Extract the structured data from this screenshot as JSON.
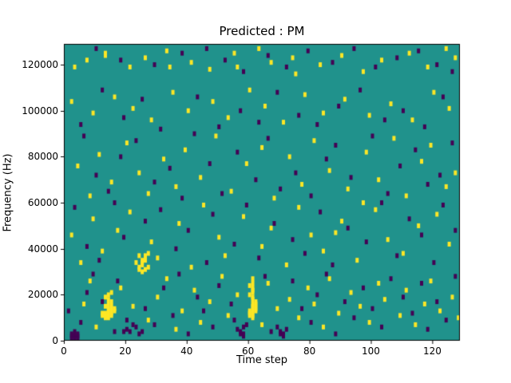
{
  "title": "Predicted : PM",
  "chart_data": {
    "type": "heatmap",
    "title": "Predicted : PM",
    "xlabel": "Time step",
    "ylabel": "Frequency (Hz)",
    "x_range": [
      0,
      129
    ],
    "y_range_hz": [
      0,
      129000
    ],
    "hz_per_bin": 1000,
    "xticks": [
      0,
      20,
      40,
      60,
      80,
      100,
      120
    ],
    "yticks_hz": [
      "0",
      "20000",
      "40000",
      "60000",
      "80000",
      "100000",
      "120000"
    ],
    "grid": false,
    "legend_position": "none",
    "colors": {
      "background_mid": "#20928c",
      "high": "#fde725",
      "low": "#440154"
    },
    "cell_classes": {
      "1": "high-yellow",
      "2": "low-purple"
    },
    "cells": [
      [
        2,
        1,
        2
      ],
      [
        2,
        2,
        2
      ],
      [
        3,
        1,
        2
      ],
      [
        3,
        2,
        2
      ],
      [
        3,
        3,
        2
      ],
      [
        4,
        1,
        2
      ],
      [
        2,
        0,
        2
      ],
      [
        3,
        0,
        2
      ],
      [
        4,
        0,
        2
      ],
      [
        4,
        2,
        2
      ],
      [
        13,
        9,
        1
      ],
      [
        13,
        10,
        1
      ],
      [
        13,
        11,
        1
      ],
      [
        14,
        9,
        1
      ],
      [
        14,
        10,
        1
      ],
      [
        14,
        11,
        1
      ],
      [
        14,
        12,
        1
      ],
      [
        14,
        13,
        1
      ],
      [
        15,
        10,
        1
      ],
      [
        15,
        11,
        1
      ],
      [
        15,
        12,
        1
      ],
      [
        15,
        13,
        1
      ],
      [
        15,
        14,
        1
      ],
      [
        13,
        14,
        1
      ],
      [
        14,
        15,
        1
      ],
      [
        15,
        16,
        1
      ],
      [
        14,
        17,
        1
      ],
      [
        13,
        18,
        1
      ],
      [
        14,
        19,
        1
      ],
      [
        15,
        20,
        1
      ],
      [
        16,
        12,
        1
      ],
      [
        16,
        13,
        1
      ],
      [
        12,
        10,
        1
      ],
      [
        12,
        11,
        1
      ],
      [
        19,
        3,
        2
      ],
      [
        20,
        4,
        2
      ],
      [
        21,
        3,
        2
      ],
      [
        22,
        6,
        2
      ],
      [
        23,
        5,
        2
      ],
      [
        20,
        8,
        2
      ],
      [
        24,
        2,
        2
      ],
      [
        25,
        3,
        2
      ],
      [
        24,
        30,
        1
      ],
      [
        24,
        31,
        1
      ],
      [
        25,
        32,
        1
      ],
      [
        25,
        33,
        1
      ],
      [
        25,
        34,
        1
      ],
      [
        26,
        34,
        1
      ],
      [
        26,
        35,
        1
      ],
      [
        26,
        36,
        1
      ],
      [
        27,
        37,
        1
      ],
      [
        24,
        36,
        1
      ],
      [
        23,
        33,
        1
      ],
      [
        25,
        29,
        1
      ],
      [
        26,
        30,
        1
      ],
      [
        27,
        31,
        1
      ],
      [
        60,
        10,
        1
      ],
      [
        60,
        11,
        1
      ],
      [
        60,
        12,
        1
      ],
      [
        61,
        9,
        1
      ],
      [
        61,
        10,
        1
      ],
      [
        61,
        11,
        1
      ],
      [
        61,
        12,
        1
      ],
      [
        61,
        13,
        1
      ],
      [
        61,
        14,
        1
      ],
      [
        61,
        15,
        1
      ],
      [
        62,
        12,
        1
      ],
      [
        62,
        13,
        1
      ],
      [
        62,
        14,
        1
      ],
      [
        62,
        15,
        1
      ],
      [
        62,
        16,
        1
      ],
      [
        61,
        17,
        1
      ],
      [
        61,
        18,
        1
      ],
      [
        60,
        19,
        1
      ],
      [
        61,
        20,
        1
      ],
      [
        61,
        21,
        1
      ],
      [
        61,
        22,
        1
      ],
      [
        60,
        23,
        1
      ],
      [
        61,
        24,
        1
      ],
      [
        61,
        26,
        1
      ],
      [
        57,
        2,
        2
      ],
      [
        57,
        3,
        2
      ],
      [
        58,
        1,
        2
      ],
      [
        58,
        2,
        2
      ],
      [
        56,
        4,
        2
      ],
      [
        58,
        5,
        2
      ],
      [
        59,
        6,
        2
      ],
      [
        70,
        2,
        2
      ],
      [
        70,
        3,
        2
      ],
      [
        71,
        1,
        2
      ],
      [
        71,
        2,
        2
      ],
      [
        72,
        4,
        2
      ],
      [
        69,
        5,
        2
      ],
      [
        3,
        118,
        1
      ],
      [
        7,
        121,
        1
      ],
      [
        13,
        123,
        1
      ],
      [
        13,
        124,
        1
      ],
      [
        21,
        118,
        1
      ],
      [
        26,
        122,
        1
      ],
      [
        33,
        125,
        1
      ],
      [
        34,
        118,
        1
      ],
      [
        41,
        120,
        1
      ],
      [
        47,
        117,
        1
      ],
      [
        55,
        124,
        1
      ],
      [
        56,
        118,
        1
      ],
      [
        63,
        126,
        1
      ],
      [
        67,
        120,
        1
      ],
      [
        74,
        122,
        1
      ],
      [
        75,
        115,
        1
      ],
      [
        83,
        119,
        1
      ],
      [
        90,
        123,
        1
      ],
      [
        97,
        116,
        1
      ],
      [
        103,
        121,
        1
      ],
      [
        112,
        124,
        1
      ],
      [
        118,
        118,
        1
      ],
      [
        124,
        126,
        1
      ],
      [
        127,
        122,
        1
      ],
      [
        10,
        126,
        2
      ],
      [
        18,
        121,
        2
      ],
      [
        29,
        119,
        2
      ],
      [
        38,
        124,
        2
      ],
      [
        46,
        126,
        2
      ],
      [
        52,
        121,
        2
      ],
      [
        58,
        116,
        2
      ],
      [
        66,
        123,
        2
      ],
      [
        72,
        118,
        2
      ],
      [
        79,
        125,
        2
      ],
      [
        87,
        120,
        2
      ],
      [
        94,
        126,
        2
      ],
      [
        101,
        118,
        2
      ],
      [
        108,
        122,
        2
      ],
      [
        115,
        125,
        2
      ],
      [
        121,
        119,
        2
      ],
      [
        126,
        116,
        2
      ],
      [
        2,
        103,
        1
      ],
      [
        9,
        98,
        1
      ],
      [
        16,
        105,
        1
      ],
      [
        22,
        100,
        1
      ],
      [
        28,
        95,
        1
      ],
      [
        35,
        107,
        1
      ],
      [
        40,
        99,
        1
      ],
      [
        48,
        103,
        1
      ],
      [
        53,
        96,
        1
      ],
      [
        60,
        108,
        1
      ],
      [
        65,
        101,
        1
      ],
      [
        71,
        94,
        1
      ],
      [
        78,
        106,
        1
      ],
      [
        84,
        98,
        1
      ],
      [
        91,
        104,
        1
      ],
      [
        99,
        97,
        1
      ],
      [
        106,
        102,
        1
      ],
      [
        113,
        95,
        1
      ],
      [
        120,
        107,
        1
      ],
      [
        125,
        100,
        1
      ],
      [
        5,
        93,
        2
      ],
      [
        12,
        108,
        2
      ],
      [
        19,
        96,
        2
      ],
      [
        25,
        104,
        2
      ],
      [
        31,
        91,
        2
      ],
      [
        43,
        105,
        2
      ],
      [
        50,
        92,
        2
      ],
      [
        57,
        99,
        2
      ],
      [
        63,
        94,
        2
      ],
      [
        69,
        107,
        2
      ],
      [
        76,
        97,
        2
      ],
      [
        82,
        93,
        2
      ],
      [
        89,
        101,
        2
      ],
      [
        96,
        108,
        2
      ],
      [
        104,
        95,
        2
      ],
      [
        110,
        99,
        2
      ],
      [
        117,
        92,
        2
      ],
      [
        123,
        105,
        2
      ],
      [
        4,
        75,
        1
      ],
      [
        8,
        62,
        1
      ],
      [
        11,
        80,
        1
      ],
      [
        15,
        68,
        1
      ],
      [
        20,
        85,
        1
      ],
      [
        24,
        72,
        1
      ],
      [
        27,
        63,
        1
      ],
      [
        32,
        78,
        1
      ],
      [
        36,
        66,
        1
      ],
      [
        39,
        82,
        1
      ],
      [
        44,
        70,
        1
      ],
      [
        49,
        88,
        1
      ],
      [
        54,
        64,
        1
      ],
      [
        59,
        76,
        1
      ],
      [
        64,
        83,
        1
      ],
      [
        68,
        61,
        1
      ],
      [
        73,
        79,
        1
      ],
      [
        77,
        67,
        1
      ],
      [
        81,
        86,
        1
      ],
      [
        86,
        73,
        1
      ],
      [
        92,
        65,
        1
      ],
      [
        98,
        81,
        1
      ],
      [
        102,
        69,
        1
      ],
      [
        107,
        87,
        1
      ],
      [
        111,
        62,
        1
      ],
      [
        116,
        77,
        1
      ],
      [
        119,
        84,
        1
      ],
      [
        124,
        66,
        1
      ],
      [
        127,
        72,
        1
      ],
      [
        6,
        88,
        2
      ],
      [
        10,
        71,
        2
      ],
      [
        14,
        64,
        2
      ],
      [
        18,
        79,
        2
      ],
      [
        23,
        86,
        2
      ],
      [
        29,
        68,
        2
      ],
      [
        34,
        74,
        2
      ],
      [
        38,
        61,
        2
      ],
      [
        42,
        89,
        2
      ],
      [
        47,
        76,
        2
      ],
      [
        51,
        63,
        2
      ],
      [
        56,
        81,
        2
      ],
      [
        62,
        69,
        2
      ],
      [
        66,
        87,
        2
      ],
      [
        70,
        65,
        2
      ],
      [
        75,
        72,
        2
      ],
      [
        80,
        62,
        2
      ],
      [
        85,
        78,
        2
      ],
      [
        88,
        84,
        2
      ],
      [
        93,
        70,
        2
      ],
      [
        100,
        88,
        2
      ],
      [
        105,
        63,
        2
      ],
      [
        109,
        75,
        2
      ],
      [
        114,
        82,
        2
      ],
      [
        118,
        67,
        2
      ],
      [
        122,
        71,
        2
      ],
      [
        126,
        85,
        2
      ],
      [
        2,
        45,
        1
      ],
      [
        5,
        33,
        1
      ],
      [
        9,
        52,
        1
      ],
      [
        12,
        38,
        1
      ],
      [
        17,
        47,
        1
      ],
      [
        21,
        55,
        1
      ],
      [
        28,
        42,
        1
      ],
      [
        30,
        35,
        1
      ],
      [
        37,
        50,
        1
      ],
      [
        41,
        31,
        1
      ],
      [
        45,
        58,
        1
      ],
      [
        50,
        44,
        1
      ],
      [
        52,
        36,
        1
      ],
      [
        58,
        53,
        1
      ],
      [
        64,
        40,
        1
      ],
      [
        67,
        48,
        1
      ],
      [
        72,
        32,
        1
      ],
      [
        76,
        57,
        1
      ],
      [
        80,
        45,
        1
      ],
      [
        84,
        38,
        1
      ],
      [
        90,
        51,
        1
      ],
      [
        95,
        34,
        1
      ],
      [
        101,
        56,
        1
      ],
      [
        105,
        43,
        1
      ],
      [
        110,
        37,
        1
      ],
      [
        115,
        49,
        1
      ],
      [
        121,
        54,
        1
      ],
      [
        125,
        41,
        1
      ],
      [
        88,
        46,
        1
      ],
      [
        97,
        59,
        1
      ],
      [
        3,
        57,
        2
      ],
      [
        7,
        40,
        2
      ],
      [
        11,
        34,
        2
      ],
      [
        16,
        59,
        2
      ],
      [
        19,
        44,
        2
      ],
      [
        26,
        51,
        2
      ],
      [
        31,
        56,
        2
      ],
      [
        36,
        39,
        2
      ],
      [
        40,
        47,
        2
      ],
      [
        46,
        33,
        2
      ],
      [
        48,
        54,
        2
      ],
      [
        55,
        41,
        2
      ],
      [
        59,
        58,
        2
      ],
      [
        63,
        35,
        2
      ],
      [
        68,
        50,
        2
      ],
      [
        74,
        43,
        2
      ],
      [
        78,
        37,
        2
      ],
      [
        83,
        55,
        2
      ],
      [
        87,
        32,
        2
      ],
      [
        92,
        48,
        2
      ],
      [
        98,
        42,
        2
      ],
      [
        103,
        59,
        2
      ],
      [
        108,
        36,
        2
      ],
      [
        112,
        52,
        2
      ],
      [
        116,
        45,
        2
      ],
      [
        120,
        33,
        2
      ],
      [
        123,
        58,
        2
      ],
      [
        127,
        47,
        2
      ],
      [
        6,
        15,
        1
      ],
      [
        8,
        25,
        1
      ],
      [
        10,
        5,
        1
      ],
      [
        18,
        22,
        1
      ],
      [
        22,
        14,
        1
      ],
      [
        27,
        8,
        1
      ],
      [
        30,
        18,
        1
      ],
      [
        33,
        26,
        1
      ],
      [
        36,
        4,
        1
      ],
      [
        38,
        12,
        1
      ],
      [
        42,
        21,
        1
      ],
      [
        44,
        7,
        1
      ],
      [
        47,
        16,
        1
      ],
      [
        51,
        27,
        1
      ],
      [
        53,
        10,
        1
      ],
      [
        56,
        19,
        1
      ],
      [
        64,
        6,
        1
      ],
      [
        66,
        24,
        1
      ],
      [
        69,
        13,
        1
      ],
      [
        73,
        17,
        1
      ],
      [
        76,
        9,
        1
      ],
      [
        79,
        22,
        1
      ],
      [
        81,
        15,
        1
      ],
      [
        84,
        5,
        1
      ],
      [
        86,
        26,
        1
      ],
      [
        89,
        11,
        1
      ],
      [
        93,
        20,
        1
      ],
      [
        96,
        14,
        1
      ],
      [
        99,
        7,
        1
      ],
      [
        102,
        24,
        1
      ],
      [
        104,
        17,
        1
      ],
      [
        109,
        10,
        1
      ],
      [
        111,
        21,
        1
      ],
      [
        114,
        6,
        1
      ],
      [
        117,
        15,
        1
      ],
      [
        119,
        25,
        1
      ],
      [
        122,
        12,
        1
      ],
      [
        126,
        18,
        1
      ],
      [
        128,
        9,
        1
      ],
      [
        1,
        12,
        2
      ],
      [
        5,
        7,
        2
      ],
      [
        7,
        20,
        2
      ],
      [
        9,
        28,
        2
      ],
      [
        12,
        16,
        2
      ],
      [
        16,
        3,
        2
      ],
      [
        17,
        25,
        2
      ],
      [
        26,
        13,
        2
      ],
      [
        29,
        6,
        2
      ],
      [
        32,
        22,
        2
      ],
      [
        35,
        10,
        2
      ],
      [
        37,
        28,
        2
      ],
      [
        40,
        2,
        2
      ],
      [
        43,
        18,
        2
      ],
      [
        45,
        12,
        2
      ],
      [
        48,
        5,
        2
      ],
      [
        50,
        23,
        2
      ],
      [
        54,
        15,
        2
      ],
      [
        55,
        8,
        2
      ],
      [
        65,
        27,
        2
      ],
      [
        67,
        3,
        2
      ],
      [
        74,
        25,
        2
      ],
      [
        77,
        13,
        2
      ],
      [
        80,
        7,
        2
      ],
      [
        82,
        19,
        2
      ],
      [
        85,
        28,
        2
      ],
      [
        88,
        2,
        2
      ],
      [
        91,
        16,
        2
      ],
      [
        94,
        9,
        2
      ],
      [
        97,
        22,
        2
      ],
      [
        100,
        13,
        2
      ],
      [
        103,
        5,
        2
      ],
      [
        106,
        26,
        2
      ],
      [
        110,
        18,
        2
      ],
      [
        113,
        11,
        2
      ],
      [
        116,
        24,
        2
      ],
      [
        118,
        4,
        2
      ],
      [
        121,
        16,
        2
      ],
      [
        124,
        8,
        2
      ],
      [
        127,
        27,
        2
      ]
    ]
  }
}
